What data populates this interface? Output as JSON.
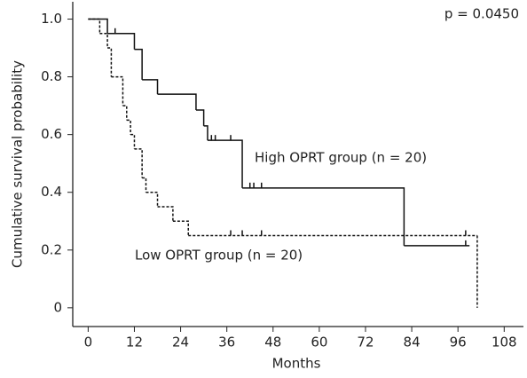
{
  "chart_data": {
    "type": "step",
    "x_label": "Months",
    "y_label": "Cumulative survival probability",
    "annotation": "p = 0.0450",
    "xlim": [
      -4,
      113
    ],
    "xticks": [
      0,
      12,
      24,
      36,
      48,
      60,
      72,
      84,
      96,
      108
    ],
    "ylim": [
      -0.065,
      1.06
    ],
    "yticks": [
      0,
      0.2,
      0.4,
      0.6,
      0.8,
      {
        "value": 1,
        "label": "1.0"
      }
    ],
    "series": [
      {
        "name": "High OPRT group (n = 20)",
        "color": "#111111",
        "dash": false,
        "x": [
          0,
          5,
          12,
          14,
          18,
          28,
          30,
          31,
          40,
          82,
          99
        ],
        "values": [
          1.0,
          0.95,
          0.895,
          0.79,
          0.74,
          0.685,
          0.63,
          0.58,
          0.415,
          0.215,
          0.215
        ],
        "censored_x": [
          7,
          32,
          33,
          37,
          42,
          43,
          45,
          98
        ],
        "censored_values": [
          0.95,
          0.58,
          0.58,
          0.58,
          0.415,
          0.415,
          0.415,
          0.215
        ]
      },
      {
        "name": "Low OPRT group (n = 20)",
        "color": "#111111",
        "dash": true,
        "x": [
          0,
          3,
          5,
          6,
          9,
          10,
          11,
          12,
          14,
          15,
          18,
          22,
          26,
          101,
          101
        ],
        "values": [
          1.0,
          0.95,
          0.9,
          0.8,
          0.7,
          0.65,
          0.6,
          0.55,
          0.45,
          0.4,
          0.35,
          0.3,
          0.25,
          0.25,
          0
        ],
        "censored_x": [
          37,
          40,
          45,
          98
        ],
        "censored_values": [
          0.25,
          0.25,
          0.25,
          0.25
        ]
      }
    ]
  }
}
